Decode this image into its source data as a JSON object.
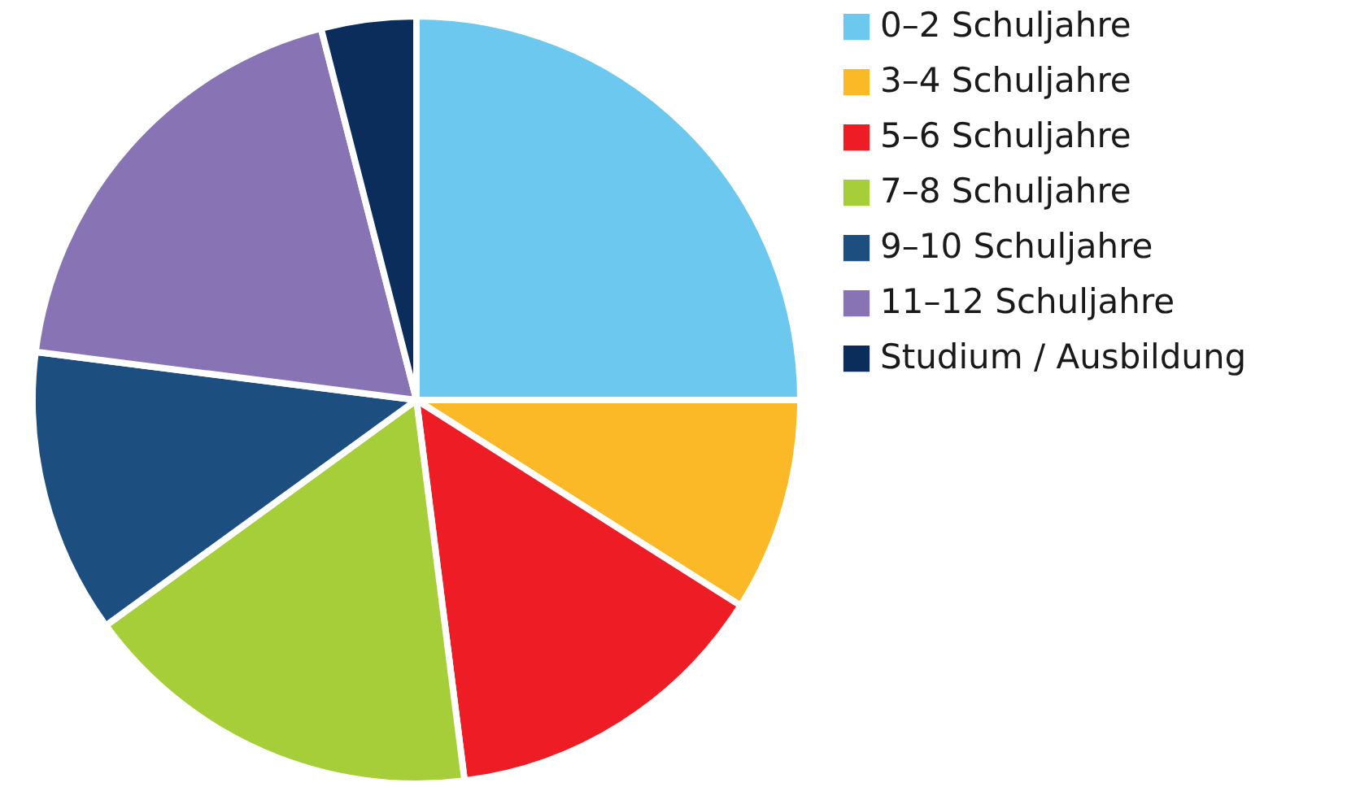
{
  "chart_data": {
    "type": "pie",
    "categories": [
      "0–2 Schuljahre",
      "3–4 Schuljahre",
      "5–6 Schuljahre",
      "7–8 Schuljahre",
      "9–10 Schuljahre",
      "11–12 Schuljahre",
      "Studium / Ausbildung"
    ],
    "values": [
      25,
      9,
      14,
      17,
      12,
      19,
      4
    ],
    "colors": [
      "#6dc8ef",
      "#fbb827",
      "#ee1c25",
      "#a6ce39",
      "#1d4e80",
      "#8873b4",
      "#0a2d5c"
    ],
    "legend": "right"
  }
}
